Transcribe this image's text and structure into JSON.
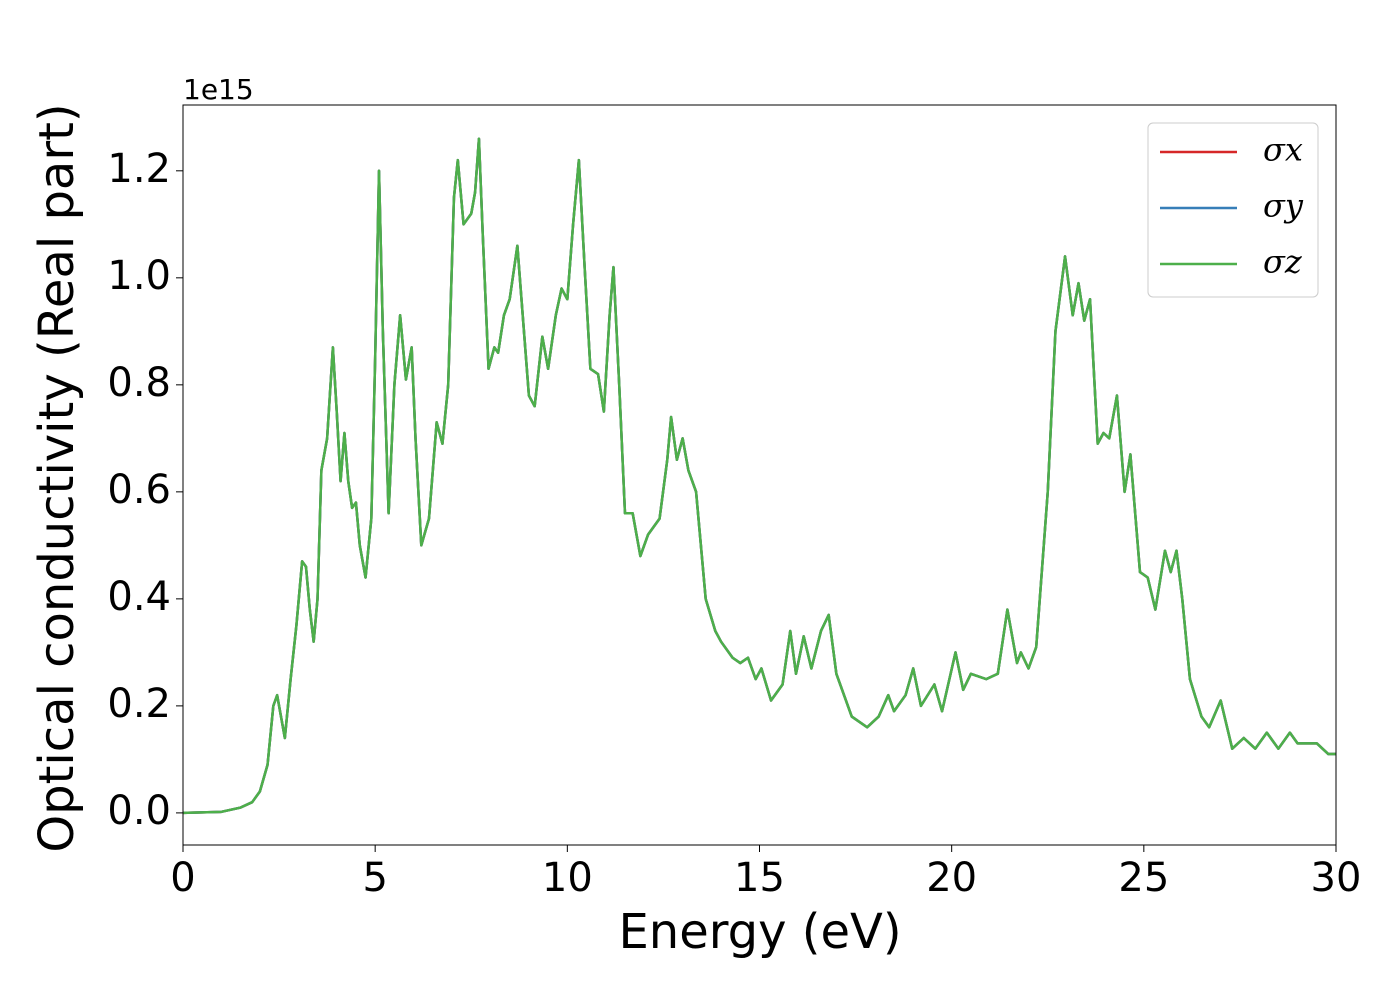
{
  "chart_data": {
    "type": "line",
    "x_label": "Energy (eV)",
    "y_label": "Optical conductivity (Real part)",
    "y_offset_label": "1e15",
    "x": [
      0,
      1.0,
      1.5,
      1.8,
      2.0,
      2.2,
      2.35,
      2.45,
      2.55,
      2.65,
      2.8,
      2.95,
      3.1,
      3.2,
      3.3,
      3.4,
      3.5,
      3.6,
      3.75,
      3.9,
      4.0,
      4.1,
      4.2,
      4.3,
      4.4,
      4.5,
      4.6,
      4.75,
      4.9,
      5.0,
      5.1,
      5.2,
      5.35,
      5.5,
      5.65,
      5.8,
      5.95,
      6.05,
      6.2,
      6.4,
      6.6,
      6.75,
      6.9,
      7.05,
      7.15,
      7.3,
      7.5,
      7.6,
      7.7,
      7.8,
      7.95,
      8.1,
      8.2,
      8.35,
      8.5,
      8.7,
      8.85,
      9.0,
      9.15,
      9.35,
      9.5,
      9.7,
      9.85,
      10.0,
      10.15,
      10.3,
      10.45,
      10.6,
      10.8,
      10.95,
      11.1,
      11.2,
      11.35,
      11.5,
      11.7,
      11.9,
      12.1,
      12.4,
      12.6,
      12.7,
      12.85,
      13.0,
      13.15,
      13.35,
      13.6,
      13.85,
      14.0,
      14.3,
      14.5,
      14.7,
      14.9,
      15.05,
      15.3,
      15.6,
      15.8,
      15.95,
      16.15,
      16.35,
      16.6,
      16.8,
      17.0,
      17.2,
      17.4,
      17.8,
      18.1,
      18.35,
      18.5,
      18.8,
      19.0,
      19.2,
      19.55,
      19.75,
      20.1,
      20.3,
      20.5,
      20.9,
      21.2,
      21.45,
      21.7,
      21.8,
      22.0,
      22.2,
      22.5,
      22.7,
      22.95,
      23.15,
      23.3,
      23.45,
      23.6,
      23.8,
      23.95,
      24.1,
      24.3,
      24.5,
      24.65,
      24.9,
      25.1,
      25.3,
      25.55,
      25.7,
      25.85,
      26.0,
      26.2,
      26.5,
      26.7,
      27.0,
      27.3,
      27.6,
      27.9,
      28.2,
      28.5,
      28.8,
      29.0,
      29.5,
      29.8,
      30
    ],
    "series": [
      {
        "name": "σx",
        "color": "#d62728",
        "values": [
          0,
          0.002,
          0.01,
          0.02,
          0.04,
          0.09,
          0.2,
          0.22,
          0.18,
          0.14,
          0.25,
          0.35,
          0.47,
          0.46,
          0.38,
          0.32,
          0.4,
          0.64,
          0.7,
          0.87,
          0.75,
          0.62,
          0.71,
          0.62,
          0.57,
          0.58,
          0.5,
          0.44,
          0.55,
          0.85,
          1.2,
          0.9,
          0.56,
          0.8,
          0.93,
          0.81,
          0.87,
          0.7,
          0.5,
          0.55,
          0.73,
          0.69,
          0.8,
          1.15,
          1.22,
          1.1,
          1.12,
          1.16,
          1.26,
          1.08,
          0.83,
          0.87,
          0.86,
          0.93,
          0.96,
          1.06,
          0.92,
          0.78,
          0.76,
          0.89,
          0.83,
          0.93,
          0.98,
          0.96,
          1.1,
          1.22,
          1.02,
          0.83,
          0.82,
          0.75,
          0.93,
          1.02,
          0.8,
          0.56,
          0.56,
          0.48,
          0.52,
          0.55,
          0.66,
          0.74,
          0.66,
          0.7,
          0.64,
          0.6,
          0.4,
          0.34,
          0.32,
          0.29,
          0.28,
          0.29,
          0.25,
          0.27,
          0.21,
          0.24,
          0.34,
          0.26,
          0.33,
          0.27,
          0.34,
          0.37,
          0.26,
          0.22,
          0.18,
          0.16,
          0.18,
          0.22,
          0.19,
          0.22,
          0.27,
          0.2,
          0.24,
          0.19,
          0.3,
          0.23,
          0.26,
          0.25,
          0.26,
          0.38,
          0.28,
          0.3,
          0.27,
          0.31,
          0.6,
          0.9,
          1.04,
          0.93,
          0.99,
          0.92,
          0.96,
          0.69,
          0.71,
          0.7,
          0.78,
          0.6,
          0.67,
          0.45,
          0.44,
          0.38,
          0.49,
          0.45,
          0.49,
          0.4,
          0.25,
          0.18,
          0.16,
          0.21,
          0.12,
          0.14,
          0.12,
          0.15,
          0.12,
          0.15,
          0.13,
          0.13,
          0.11,
          0.11
        ]
      },
      {
        "name": "σy",
        "color": "#377eb8",
        "values": [
          0,
          0.002,
          0.01,
          0.02,
          0.04,
          0.09,
          0.2,
          0.22,
          0.18,
          0.14,
          0.25,
          0.35,
          0.47,
          0.46,
          0.38,
          0.32,
          0.4,
          0.64,
          0.7,
          0.87,
          0.75,
          0.62,
          0.71,
          0.62,
          0.57,
          0.58,
          0.5,
          0.44,
          0.55,
          0.85,
          1.2,
          0.9,
          0.56,
          0.8,
          0.93,
          0.81,
          0.87,
          0.7,
          0.5,
          0.55,
          0.73,
          0.69,
          0.8,
          1.15,
          1.22,
          1.1,
          1.12,
          1.16,
          1.26,
          1.08,
          0.83,
          0.87,
          0.86,
          0.93,
          0.96,
          1.06,
          0.92,
          0.78,
          0.76,
          0.89,
          0.83,
          0.93,
          0.98,
          0.96,
          1.1,
          1.22,
          1.02,
          0.83,
          0.82,
          0.75,
          0.93,
          1.02,
          0.8,
          0.56,
          0.56,
          0.48,
          0.52,
          0.55,
          0.66,
          0.74,
          0.66,
          0.7,
          0.64,
          0.6,
          0.4,
          0.34,
          0.32,
          0.29,
          0.28,
          0.29,
          0.25,
          0.27,
          0.21,
          0.24,
          0.34,
          0.26,
          0.33,
          0.27,
          0.34,
          0.37,
          0.26,
          0.22,
          0.18,
          0.16,
          0.18,
          0.22,
          0.19,
          0.22,
          0.27,
          0.2,
          0.24,
          0.19,
          0.3,
          0.23,
          0.26,
          0.25,
          0.26,
          0.38,
          0.28,
          0.3,
          0.27,
          0.31,
          0.6,
          0.9,
          1.04,
          0.93,
          0.99,
          0.92,
          0.96,
          0.69,
          0.71,
          0.7,
          0.78,
          0.6,
          0.67,
          0.45,
          0.44,
          0.38,
          0.49,
          0.45,
          0.49,
          0.4,
          0.25,
          0.18,
          0.16,
          0.21,
          0.12,
          0.14,
          0.12,
          0.15,
          0.12,
          0.15,
          0.13,
          0.13,
          0.11,
          0.11
        ]
      },
      {
        "name": "σz",
        "color": "#4daf4a",
        "values": [
          0,
          0.002,
          0.01,
          0.02,
          0.04,
          0.09,
          0.2,
          0.22,
          0.18,
          0.14,
          0.25,
          0.35,
          0.47,
          0.46,
          0.38,
          0.32,
          0.4,
          0.64,
          0.7,
          0.87,
          0.75,
          0.62,
          0.71,
          0.62,
          0.57,
          0.58,
          0.5,
          0.44,
          0.55,
          0.85,
          1.2,
          0.9,
          0.56,
          0.8,
          0.93,
          0.81,
          0.87,
          0.7,
          0.5,
          0.55,
          0.73,
          0.69,
          0.8,
          1.15,
          1.22,
          1.1,
          1.12,
          1.16,
          1.26,
          1.08,
          0.83,
          0.87,
          0.86,
          0.93,
          0.96,
          1.06,
          0.92,
          0.78,
          0.76,
          0.89,
          0.83,
          0.93,
          0.98,
          0.96,
          1.1,
          1.22,
          1.02,
          0.83,
          0.82,
          0.75,
          0.93,
          1.02,
          0.8,
          0.56,
          0.56,
          0.48,
          0.52,
          0.55,
          0.66,
          0.74,
          0.66,
          0.7,
          0.64,
          0.6,
          0.4,
          0.34,
          0.32,
          0.29,
          0.28,
          0.29,
          0.25,
          0.27,
          0.21,
          0.24,
          0.34,
          0.26,
          0.33,
          0.27,
          0.34,
          0.37,
          0.26,
          0.22,
          0.18,
          0.16,
          0.18,
          0.22,
          0.19,
          0.22,
          0.27,
          0.2,
          0.24,
          0.19,
          0.3,
          0.23,
          0.26,
          0.25,
          0.26,
          0.38,
          0.28,
          0.3,
          0.27,
          0.31,
          0.6,
          0.9,
          1.04,
          0.93,
          0.99,
          0.92,
          0.96,
          0.69,
          0.71,
          0.7,
          0.78,
          0.6,
          0.67,
          0.45,
          0.44,
          0.38,
          0.49,
          0.45,
          0.49,
          0.4,
          0.25,
          0.18,
          0.16,
          0.21,
          0.12,
          0.14,
          0.12,
          0.15,
          0.12,
          0.15,
          0.13,
          0.13,
          0.11,
          0.11
        ]
      }
    ],
    "xlim": [
      0,
      30
    ],
    "xticks": [
      0,
      5,
      10,
      15,
      20,
      25,
      30
    ],
    "ylim": [
      -0.06,
      1.323
    ],
    "yticks": [
      {
        "value": 0,
        "label": "0.0"
      },
      0.2,
      0.4,
      0.6,
      0.8,
      {
        "value": 1,
        "label": "1.0"
      },
      1.2
    ],
    "legend": "upper right",
    "grid": false
  }
}
